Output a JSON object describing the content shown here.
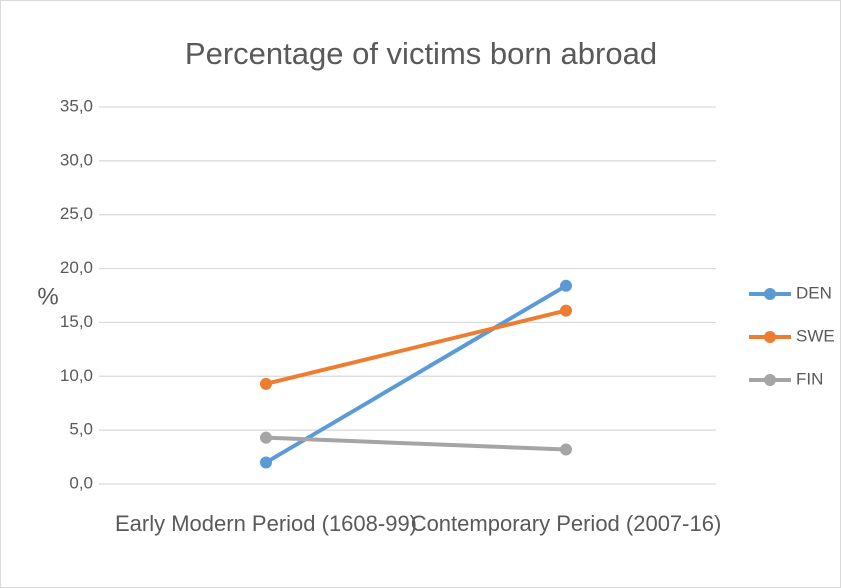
{
  "chart_data": {
    "type": "line",
    "title": "Percentage of victims born abroad",
    "y_label": "%",
    "categories": [
      "Early Modern Period (1608-99)",
      "Contemporary Period (2007-16)"
    ],
    "series": [
      {
        "name": "DEN",
        "color": "#5b9bd5",
        "values": [
          2.0,
          18.4
        ]
      },
      {
        "name": "SWE",
        "color": "#ed7d31",
        "values": [
          9.3,
          16.1
        ]
      },
      {
        "name": "FIN",
        "color": "#a5a5a5",
        "values": [
          4.3,
          3.2
        ]
      }
    ],
    "ylim": [
      0,
      35
    ],
    "yticks": [
      {
        "value": 0,
        "label": "0,0"
      },
      {
        "value": 5,
        "label": "5,0"
      },
      {
        "value": 10,
        "label": "10,0"
      },
      {
        "value": 15,
        "label": "15,0"
      },
      {
        "value": 20,
        "label": "20,0"
      },
      {
        "value": 25,
        "label": "25,0"
      },
      {
        "value": 30,
        "label": "30,0"
      },
      {
        "value": 35,
        "label": "35,0"
      }
    ],
    "grid": true,
    "legend": "right"
  }
}
